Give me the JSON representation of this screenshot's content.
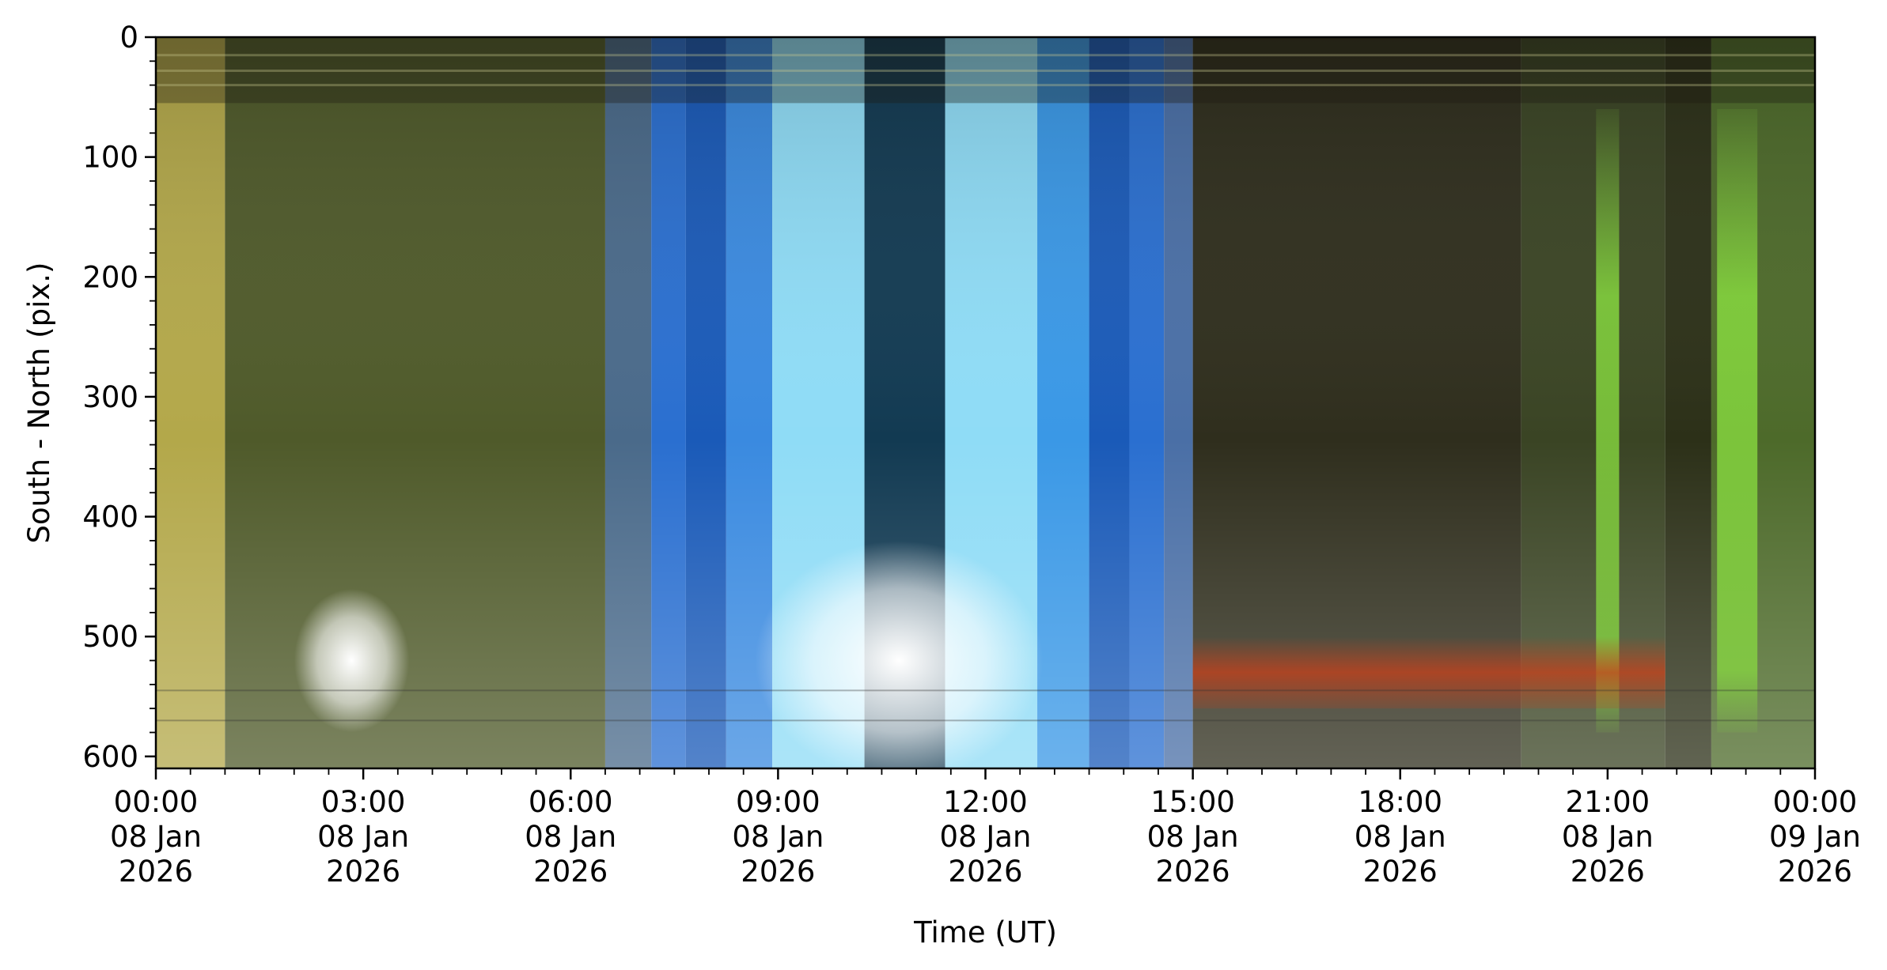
{
  "chart_data": {
    "type": "heatmap",
    "title": "",
    "xlabel": "Time (UT)",
    "ylabel": "South - North (pix.)",
    "xlim": [
      "2026-01-08T00:00",
      "2026-01-09T00:00"
    ],
    "ylim": [
      610,
      0
    ],
    "y_inverted": true,
    "x_tick_labels": [
      {
        "t": "2026-01-08T00:00",
        "lines": [
          "00:00",
          "08 Jan",
          "2026"
        ]
      },
      {
        "t": "2026-01-08T03:00",
        "lines": [
          "03:00",
          "08 Jan",
          "2026"
        ]
      },
      {
        "t": "2026-01-08T06:00",
        "lines": [
          "06:00",
          "08 Jan",
          "2026"
        ]
      },
      {
        "t": "2026-01-08T09:00",
        "lines": [
          "09:00",
          "08 Jan",
          "2026"
        ]
      },
      {
        "t": "2026-01-08T12:00",
        "lines": [
          "12:00",
          "08 Jan",
          "2026"
        ]
      },
      {
        "t": "2026-01-08T15:00",
        "lines": [
          "15:00",
          "08 Jan",
          "2026"
        ]
      },
      {
        "t": "2026-01-08T18:00",
        "lines": [
          "18:00",
          "08 Jan",
          "2026"
        ]
      },
      {
        "t": "2026-01-08T21:00",
        "lines": [
          "21:00",
          "08 Jan",
          "2026"
        ]
      },
      {
        "t": "2026-01-09T00:00",
        "lines": [
          "00:00",
          "09 Jan",
          "2026"
        ]
      }
    ],
    "x_minor_ticks_per_major": 6,
    "y_ticks": [
      0,
      100,
      200,
      300,
      400,
      500,
      600
    ],
    "y_minor_step": 20,
    "grid": false,
    "colorization": {
      "segments": [
        {
          "start": "2026-01-08T00:00",
          "end": "2026-01-08T01:00",
          "color": "#b3a84a"
        },
        {
          "start": "2026-01-08T01:00",
          "end": "2026-01-08T06:30",
          "color": "#4f5a2a"
        },
        {
          "start": "2026-01-08T06:30",
          "end": "2026-01-08T07:10",
          "color": "#4a6a8a"
        },
        {
          "start": "2026-01-08T07:10",
          "end": "2026-01-08T07:40",
          "color": "#2a6fd0"
        },
        {
          "start": "2026-01-08T07:40",
          "end": "2026-01-08T08:15",
          "color": "#1a5ab8"
        },
        {
          "start": "2026-01-08T08:15",
          "end": "2026-01-08T08:55",
          "color": "#3a8ae0"
        },
        {
          "start": "2026-01-08T08:55",
          "end": "2026-01-08T10:15",
          "color": "#8fdcf6"
        },
        {
          "start": "2026-01-08T10:15",
          "end": "2026-01-08T11:25",
          "color": "#123a52"
        },
        {
          "start": "2026-01-08T11:25",
          "end": "2026-01-08T12:45",
          "color": "#8fdcf6"
        },
        {
          "start": "2026-01-08T12:45",
          "end": "2026-01-08T13:30",
          "color": "#3a98e6"
        },
        {
          "start": "2026-01-08T13:30",
          "end": "2026-01-08T14:05",
          "color": "#1a5ab8"
        },
        {
          "start": "2026-01-08T14:05",
          "end": "2026-01-08T14:35",
          "color": "#2a6fd0"
        },
        {
          "start": "2026-01-08T14:35",
          "end": "2026-01-08T15:00",
          "color": "#4a6fa6"
        },
        {
          "start": "2026-01-08T15:00",
          "end": "2026-01-08T19:45",
          "color": "#2f2e1d"
        },
        {
          "start": "2026-01-08T19:45",
          "end": "2026-01-08T21:50",
          "color": "#3a4424"
        },
        {
          "start": "2026-01-08T21:50",
          "end": "2026-01-08T22:30",
          "color": "#2c3018"
        },
        {
          "start": "2026-01-08T22:30",
          "end": "2026-01-09T00:00",
          "color": "#4d6a2a"
        }
      ],
      "features": [
        {
          "kind": "aurora-green",
          "start": "2026-01-08T20:50",
          "end": "2026-01-08T21:10",
          "color": "#7ad23a"
        },
        {
          "kind": "aurora-green",
          "start": "2026-01-08T22:35",
          "end": "2026-01-08T23:10",
          "color": "#8ae040"
        },
        {
          "kind": "red-band",
          "start": "2026-01-08T15:00",
          "end": "2026-01-08T21:50",
          "y_range": [
            500,
            560
          ],
          "color": "#c8401a"
        },
        {
          "kind": "bright-glow",
          "start": "2026-01-08T02:00",
          "end": "2026-01-08T03:40",
          "y_range": [
            480,
            560
          ],
          "color": "#ffffff"
        },
        {
          "kind": "bright-glow",
          "start": "2026-01-08T08:40",
          "end": "2026-01-08T12:50",
          "y_range": [
            440,
            600
          ],
          "color": "#ffffff"
        }
      ],
      "top_strip_y_range": [
        0,
        55
      ]
    }
  }
}
